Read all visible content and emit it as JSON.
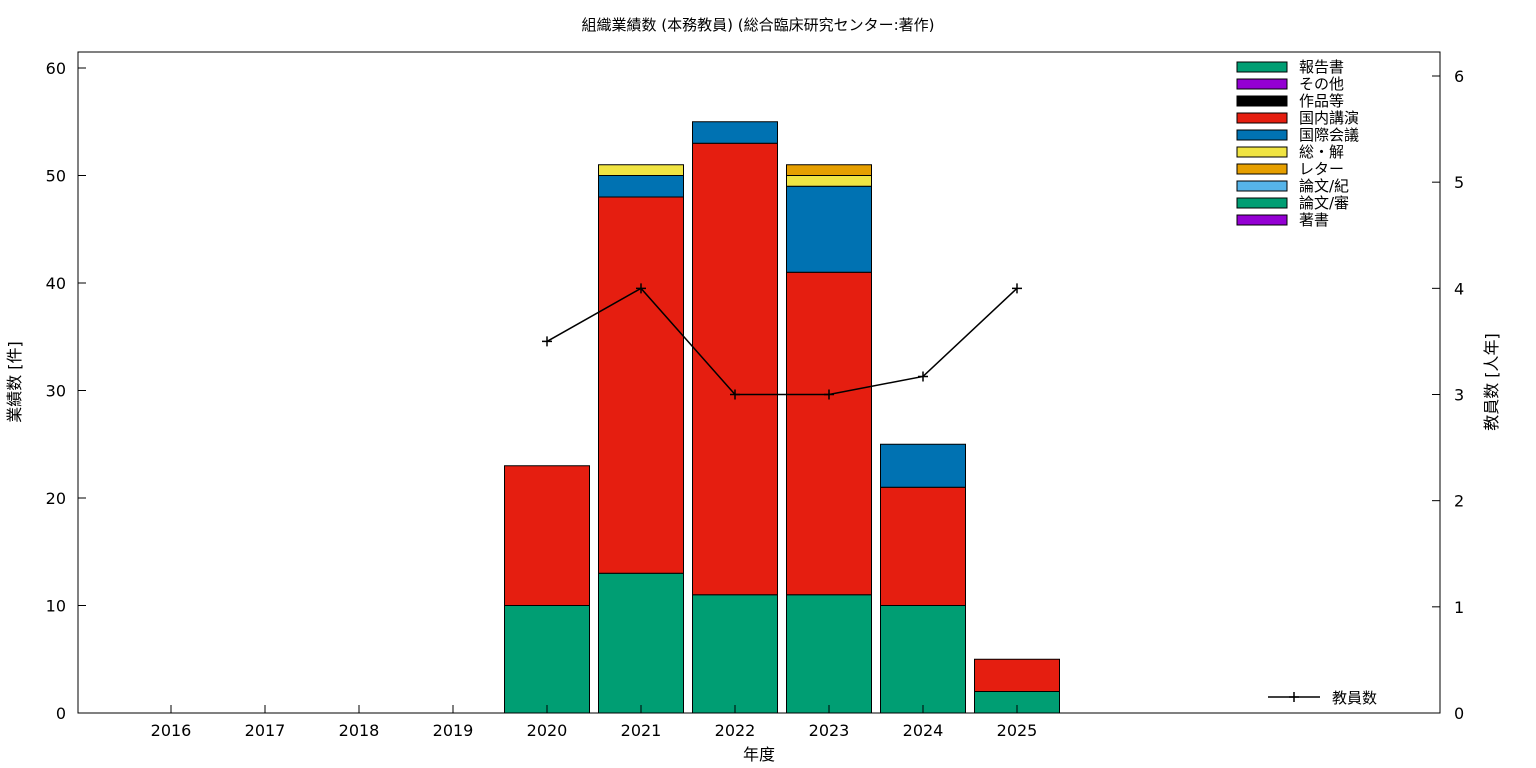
{
  "chart_data": {
    "type": "bar",
    "stacked": true,
    "title": "組織業績数 (本務教員) (総合臨床研究センター:著作)",
    "xlabel": "年度",
    "ylabel": "業績数 [件]",
    "y2label": "教員数 [人年]",
    "categories": [
      "2016",
      "2017",
      "2018",
      "2019",
      "2020",
      "2021",
      "2022",
      "2023",
      "2024",
      "2025"
    ],
    "ylim": [
      0,
      60
    ],
    "yticks": [
      "0",
      "10",
      "20",
      "30",
      "40",
      "50",
      "60"
    ],
    "y2lim": [
      0,
      6
    ],
    "y2ticks": [
      "0",
      "1",
      "2",
      "3",
      "4",
      "5",
      "6"
    ],
    "grid": false,
    "legend_position": "top-right",
    "series": [
      {
        "name": "報告書",
        "color": "#009e73",
        "values": [
          0,
          0,
          0,
          0,
          10,
          13,
          11,
          11,
          10,
          2
        ]
      },
      {
        "name": "その他",
        "color": "#9400d3",
        "values": [
          0,
          0,
          0,
          0,
          0,
          0,
          0,
          0,
          0,
          0
        ]
      },
      {
        "name": "作品等",
        "color": "#000000",
        "values": [
          0,
          0,
          0,
          0,
          0,
          0,
          0,
          0,
          0,
          0
        ]
      },
      {
        "name": "国内講演",
        "color": "#e51e10",
        "values": [
          0,
          0,
          0,
          0,
          13,
          35,
          42,
          30,
          11,
          3
        ]
      },
      {
        "name": "国際会議",
        "color": "#0072b2",
        "values": [
          0,
          0,
          0,
          0,
          0,
          2,
          2,
          8,
          4,
          0
        ]
      },
      {
        "name": "総・解",
        "color": "#f0e442",
        "values": [
          0,
          0,
          0,
          0,
          0,
          1,
          0,
          1,
          0,
          0
        ]
      },
      {
        "name": "レター",
        "color": "#e69f00",
        "values": [
          0,
          0,
          0,
          0,
          0,
          0,
          0,
          1,
          0,
          0
        ]
      },
      {
        "name": "論文/紀",
        "color": "#56b4e9",
        "values": [
          0,
          0,
          0,
          0,
          0,
          0,
          0,
          0,
          0,
          0
        ]
      },
      {
        "name": "論文/審",
        "color": "#009e73",
        "values": [
          0,
          0,
          0,
          0,
          0,
          0,
          0,
          0,
          0,
          0
        ]
      },
      {
        "name": "著書",
        "color": "#9400d3",
        "values": [
          0,
          0,
          0,
          0,
          0,
          0,
          0,
          0,
          0,
          0
        ]
      }
    ],
    "line_series": {
      "name": "教員数",
      "color": "#000000",
      "axis": "y2",
      "x": [
        "2020",
        "2021",
        "2022",
        "2023",
        "2024",
        "2025"
      ],
      "values": [
        3.5,
        4.0,
        3.0,
        3.0,
        3.17,
        4.0
      ]
    }
  }
}
